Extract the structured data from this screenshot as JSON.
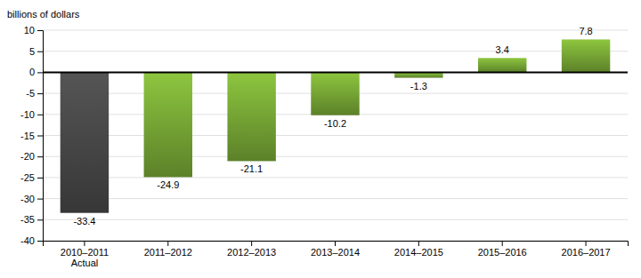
{
  "chart_data": {
    "type": "bar",
    "ylabel": "billions of dollars",
    "categories": [
      "2010–2011\nActual",
      "2011–2012",
      "2012–2013",
      "2013–2014",
      "2014–2015",
      "2015–2016",
      "2016–2017"
    ],
    "values": [
      -33.4,
      -24.9,
      -21.1,
      -10.2,
      -1.3,
      3.4,
      7.8
    ],
    "colors": [
      "#555555",
      "#8dc63f",
      "#8dc63f",
      "#8dc63f",
      "#8dc63f",
      "#8dc63f",
      "#8dc63f"
    ],
    "ylim": [
      -40,
      10
    ],
    "yticks": [
      -40,
      -35,
      -30,
      -25,
      -20,
      -15,
      -10,
      -5,
      0,
      5,
      10
    ],
    "grid": true,
    "data_labels": true
  }
}
